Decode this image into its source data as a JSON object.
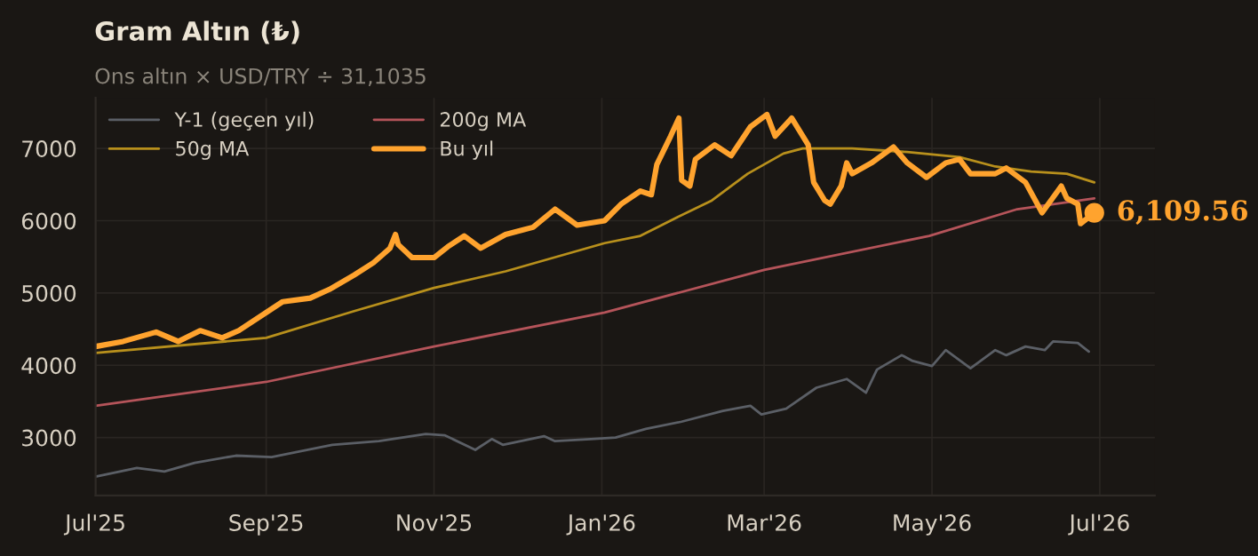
{
  "chart_data": {
    "type": "line",
    "title": "Gram Altın (₺)",
    "subtitle": "Ons altın × USD/TRY ÷ 31,1035",
    "xlim": [
      "2025-07-01",
      "2026-07-21"
    ],
    "xticks": [
      {
        "value": "2025-07-01",
        "label": "Jul'25"
      },
      {
        "value": "2025-09-01",
        "label": "Sep'25"
      },
      {
        "value": "2025-11-01",
        "label": "Nov'25"
      },
      {
        "value": "2026-01-01",
        "label": "Jan'26"
      },
      {
        "value": "2026-03-01",
        "label": "Mar'26"
      },
      {
        "value": "2026-05-01",
        "label": "May'26"
      },
      {
        "value": "2026-07-01",
        "label": "Jul'26"
      }
    ],
    "ylim": [
      2200,
      7700
    ],
    "yticks": [
      3000,
      4000,
      5000,
      6000,
      7000
    ],
    "grid": true,
    "legend": "top left",
    "marker": "none",
    "line_style": "solid",
    "series": [
      {
        "name": "Y-1 (geçen yıl)",
        "color": "#5b5f66",
        "x": [
          "2025-07-01",
          "2025-07-16",
          "2025-07-26",
          "2025-08-06",
          "2025-08-21",
          "2025-09-03",
          "2025-09-25",
          "2025-10-12",
          "2025-10-29",
          "2025-11-05",
          "2025-11-16",
          "2025-11-22",
          "2025-11-26",
          "2025-12-11",
          "2025-12-15",
          "2025-12-28",
          "2026-01-06",
          "2026-01-17",
          "2026-01-30",
          "2026-02-14",
          "2026-02-24",
          "2026-02-28",
          "2026-03-09",
          "2026-03-20",
          "2026-03-31",
          "2026-04-07",
          "2026-04-11",
          "2026-04-20",
          "2026-04-24",
          "2026-05-01",
          "2026-05-06",
          "2026-05-15",
          "2026-05-24",
          "2026-05-28",
          "2026-06-04",
          "2026-06-11",
          "2026-06-14",
          "2026-06-23",
          "2026-06-27"
        ],
        "values": [
          2460,
          2580,
          2530,
          2650,
          2750,
          2730,
          2900,
          2950,
          3050,
          3030,
          2830,
          2980,
          2900,
          3020,
          2950,
          2980,
          3000,
          3120,
          3220,
          3370,
          3440,
          3320,
          3400,
          3690,
          3810,
          3620,
          3940,
          4140,
          4060,
          3990,
          4210,
          3960,
          4210,
          4140,
          4260,
          4210,
          4330,
          4310,
          4190
        ]
      },
      {
        "name": "200g MA",
        "color": "#b5545a",
        "x": [
          "2025-07-01",
          "2025-09-01",
          "2025-11-01",
          "2026-01-02",
          "2026-03-01",
          "2026-04-30",
          "2026-06-01",
          "2026-06-29"
        ],
        "values": [
          3440,
          3770,
          4260,
          4730,
          5320,
          5790,
          6160,
          6310
        ]
      },
      {
        "name": "50g MA",
        "color": "#b8901c",
        "x": [
          "2025-07-01",
          "2025-09-01",
          "2025-10-03",
          "2025-11-01",
          "2025-11-27",
          "2026-01-02",
          "2026-01-15",
          "2026-01-28",
          "2026-02-10",
          "2026-02-23",
          "2026-03-08",
          "2026-03-15",
          "2026-04-02",
          "2026-04-22",
          "2026-05-11",
          "2026-05-24",
          "2026-06-06",
          "2026-06-19",
          "2026-06-29"
        ],
        "values": [
          4170,
          4380,
          4750,
          5070,
          5300,
          5690,
          5790,
          6040,
          6280,
          6650,
          6930,
          7000,
          7000,
          6950,
          6880,
          6750,
          6680,
          6650,
          6530
        ]
      },
      {
        "name": "Bu yıl",
        "color": "#ffa32e",
        "x": [
          "2025-07-01",
          "2025-07-11",
          "2025-07-23",
          "2025-07-31",
          "2025-08-08",
          "2025-08-16",
          "2025-08-22",
          "2025-09-01",
          "2025-09-07",
          "2025-09-17",
          "2025-09-24",
          "2025-10-03",
          "2025-10-10",
          "2025-10-16",
          "2025-10-18",
          "2025-10-19",
          "2025-10-24",
          "2025-11-01",
          "2025-11-06",
          "2025-11-12",
          "2025-11-18",
          "2025-11-27",
          "2025-12-07",
          "2025-12-15",
          "2025-12-23",
          "2026-01-02",
          "2026-01-08",
          "2026-01-15",
          "2026-01-19",
          "2026-01-21",
          "2026-01-26",
          "2026-01-29",
          "2026-01-30",
          "2026-02-02",
          "2026-02-04",
          "2026-02-11",
          "2026-02-17",
          "2026-02-24",
          "2026-03-02",
          "2026-03-05",
          "2026-03-11",
          "2026-03-17",
          "2026-03-19",
          "2026-03-23",
          "2026-03-25",
          "2026-03-29",
          "2026-03-31",
          "2026-04-02",
          "2026-04-09",
          "2026-04-17",
          "2026-04-22",
          "2026-04-29",
          "2026-05-06",
          "2026-05-11",
          "2026-05-15",
          "2026-05-24",
          "2026-05-28",
          "2026-06-04",
          "2026-06-10",
          "2026-06-17",
          "2026-06-19",
          "2026-06-23",
          "2026-06-24",
          "2026-06-29"
        ],
        "values": [
          4260,
          4330,
          4460,
          4330,
          4480,
          4380,
          4480,
          4730,
          4880,
          4930,
          5050,
          5250,
          5420,
          5620,
          5810,
          5670,
          5490,
          5490,
          5640,
          5790,
          5620,
          5810,
          5910,
          6160,
          5940,
          6000,
          6230,
          6410,
          6360,
          6780,
          7170,
          7420,
          6560,
          6480,
          6850,
          7050,
          6900,
          7300,
          7470,
          7170,
          7420,
          7050,
          6530,
          6280,
          6230,
          6480,
          6800,
          6650,
          6800,
          7020,
          6800,
          6600,
          6800,
          6850,
          6650,
          6650,
          6730,
          6530,
          6110,
          6480,
          6310,
          6230,
          5960,
          6109.56
        ]
      }
    ],
    "annotations": [
      {
        "text": "6,109.56",
        "x": "2026-06-29",
        "y": 6109.56
      }
    ]
  }
}
